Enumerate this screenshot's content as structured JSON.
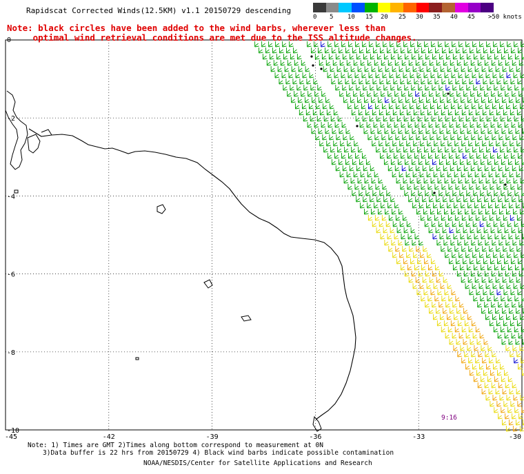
{
  "title": "Rapidscat Corrected Winds(12.5KM) v1.1 20150729 descending",
  "note_line1": "Note: black circles have been added to the wind barbs, wherever less than",
  "note_line2": "     optimal wind retrieval conditions are met due to the ISS altitude changes.",
  "colorbar": {
    "colors": [
      "#3a3a3a",
      "#8a8a8a",
      "#00c8ff",
      "#0050ff",
      "#00b400",
      "#ffff00",
      "#ffb400",
      "#ff6400",
      "#ff0000",
      "#8b1e1e",
      "#b46432",
      "#e100e1",
      "#9600c8",
      "#4b0082"
    ],
    "labels": [
      "0",
      "5",
      "10",
      "15",
      "20",
      "25",
      "30",
      "35",
      "40",
      "45",
      ">50 knots"
    ]
  },
  "axes": {
    "lat_labels": [
      "0",
      "-2",
      "-4",
      "-6",
      "-8",
      "-10"
    ],
    "lon_labels": [
      "-45",
      "-42",
      "-39",
      "-36",
      "-33",
      "-30"
    ]
  },
  "swath_time": "9:16",
  "footer": {
    "line1": "Note: 1) Times are GMT 2)Times along bottom correspond to measurement at 0N",
    "line2": "3)Data buffer is 22 hrs from 20150729 4) Black wind barbs indicate possible contamination",
    "line3": "NOAA/NESDIS/Center for Satellite Applications and Research"
  },
  "barb_colors": {
    "green": "#00a000",
    "yellow": "#e8d800",
    "orange": "#f0a000",
    "blue": "#0000d0",
    "black": "#000000"
  }
}
